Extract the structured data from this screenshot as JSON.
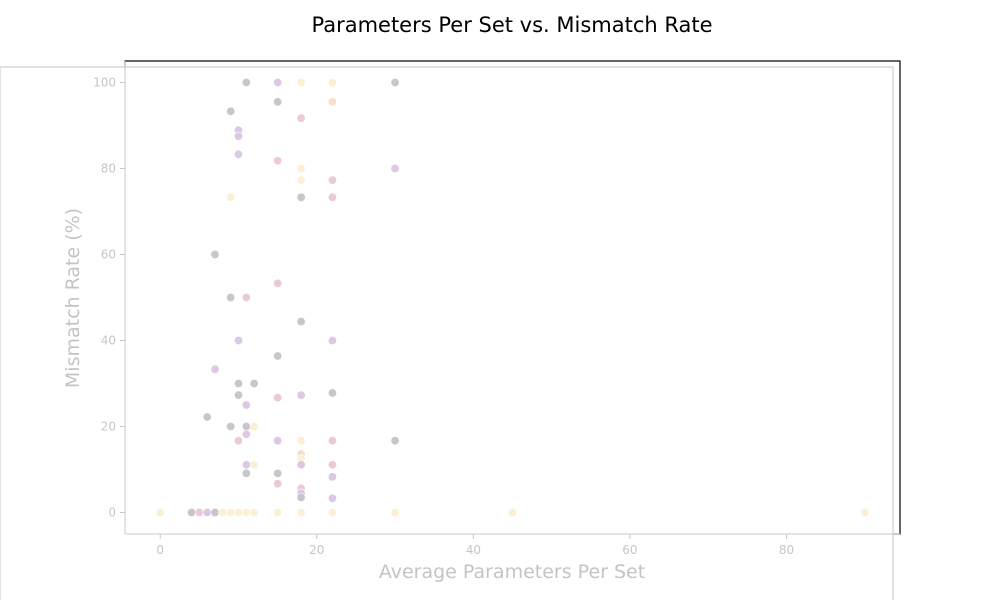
{
  "chart_data": {
    "type": "scatter",
    "title": "Parameters Per Set vs. Mismatch Rate",
    "xlabel": "Average Parameters Per Set",
    "ylabel": "Mismatch Rate (%)",
    "xlim": [
      -4.5,
      94.5
    ],
    "ylim": [
      -5,
      105
    ],
    "xticks": [
      "0",
      "20",
      "40",
      "60",
      "80"
    ],
    "yticks": [
      "0",
      "20",
      "40",
      "60",
      "80",
      "100"
    ],
    "grid": false,
    "legend": "none",
    "colors": {
      "gray": "#c9c5cc",
      "purple": "#dcc7e4",
      "pink": "#ecc9d6",
      "peach": "#f7dfcd",
      "yellow": "#fbf0d4",
      "axis": "#c8c8c8",
      "overlay": "#ffffff"
    },
    "points": [
      {
        "x": 11,
        "y": 100,
        "c": "gray"
      },
      {
        "x": 15,
        "y": 100,
        "c": "purple"
      },
      {
        "x": 18,
        "y": 100,
        "c": "yellow"
      },
      {
        "x": 22,
        "y": 100,
        "c": "yellow"
      },
      {
        "x": 30,
        "y": 100,
        "c": "gray"
      },
      {
        "x": 15,
        "y": 95.5,
        "c": "gray"
      },
      {
        "x": 22,
        "y": 95.5,
        "c": "peach"
      },
      {
        "x": 9,
        "y": 93.3,
        "c": "gray"
      },
      {
        "x": 18,
        "y": 91.7,
        "c": "pink"
      },
      {
        "x": 10,
        "y": 88.9,
        "c": "purple"
      },
      {
        "x": 10,
        "y": 87.5,
        "c": "purple"
      },
      {
        "x": 10,
        "y": 83.3,
        "c": "purple"
      },
      {
        "x": 15,
        "y": 81.8,
        "c": "pink"
      },
      {
        "x": 18,
        "y": 80,
        "c": "yellow"
      },
      {
        "x": 30,
        "y": 80,
        "c": "purple"
      },
      {
        "x": 18,
        "y": 77.3,
        "c": "yellow"
      },
      {
        "x": 22,
        "y": 77.3,
        "c": "pink"
      },
      {
        "x": 9,
        "y": 73.3,
        "c": "yellow"
      },
      {
        "x": 18,
        "y": 73.3,
        "c": "gray"
      },
      {
        "x": 22,
        "y": 73.3,
        "c": "pink"
      },
      {
        "x": 7,
        "y": 60,
        "c": "gray"
      },
      {
        "x": 15,
        "y": 53.3,
        "c": "pink"
      },
      {
        "x": 9,
        "y": 50,
        "c": "gray"
      },
      {
        "x": 11,
        "y": 50,
        "c": "pink"
      },
      {
        "x": 18,
        "y": 44.4,
        "c": "gray"
      },
      {
        "x": 10,
        "y": 40,
        "c": "purple"
      },
      {
        "x": 22,
        "y": 40,
        "c": "purple"
      },
      {
        "x": 15,
        "y": 36.4,
        "c": "gray"
      },
      {
        "x": 7,
        "y": 33.3,
        "c": "purple"
      },
      {
        "x": 10,
        "y": 30,
        "c": "gray"
      },
      {
        "x": 12,
        "y": 30,
        "c": "gray"
      },
      {
        "x": 10,
        "y": 27.3,
        "c": "gray"
      },
      {
        "x": 15,
        "y": 26.7,
        "c": "pink"
      },
      {
        "x": 18,
        "y": 27.3,
        "c": "purple"
      },
      {
        "x": 22,
        "y": 27.8,
        "c": "gray"
      },
      {
        "x": 11,
        "y": 25,
        "c": "purple"
      },
      {
        "x": 6,
        "y": 22.2,
        "c": "gray"
      },
      {
        "x": 9,
        "y": 20,
        "c": "gray"
      },
      {
        "x": 11,
        "y": 20,
        "c": "gray"
      },
      {
        "x": 12,
        "y": 20,
        "c": "yellow"
      },
      {
        "x": 11,
        "y": 18.2,
        "c": "purple"
      },
      {
        "x": 10,
        "y": 16.7,
        "c": "pink"
      },
      {
        "x": 15,
        "y": 16.7,
        "c": "purple"
      },
      {
        "x": 18,
        "y": 16.7,
        "c": "yellow"
      },
      {
        "x": 22,
        "y": 16.7,
        "c": "pink"
      },
      {
        "x": 30,
        "y": 16.7,
        "c": "gray"
      },
      {
        "x": 18,
        "y": 13.6,
        "c": "peach"
      },
      {
        "x": 18,
        "y": 12.5,
        "c": "yellow"
      },
      {
        "x": 11,
        "y": 11.1,
        "c": "purple"
      },
      {
        "x": 12,
        "y": 11.1,
        "c": "yellow"
      },
      {
        "x": 18,
        "y": 11.1,
        "c": "purple"
      },
      {
        "x": 22,
        "y": 11.1,
        "c": "pink"
      },
      {
        "x": 11,
        "y": 9.1,
        "c": "gray"
      },
      {
        "x": 15,
        "y": 9.1,
        "c": "gray"
      },
      {
        "x": 22,
        "y": 8.3,
        "c": "purple"
      },
      {
        "x": 15,
        "y": 6.7,
        "c": "pink"
      },
      {
        "x": 18,
        "y": 5.6,
        "c": "pink"
      },
      {
        "x": 18,
        "y": 4.5,
        "c": "purple"
      },
      {
        "x": 18,
        "y": 3.5,
        "c": "gray"
      },
      {
        "x": 22,
        "y": 3.3,
        "c": "purple"
      },
      {
        "x": 0,
        "y": 0,
        "c": "yellow"
      },
      {
        "x": 4,
        "y": 0,
        "c": "gray"
      },
      {
        "x": 5,
        "y": 0,
        "c": "pink"
      },
      {
        "x": 6,
        "y": 0,
        "c": "purple"
      },
      {
        "x": 7,
        "y": 0,
        "c": "gray"
      },
      {
        "x": 8,
        "y": 0,
        "c": "yellow"
      },
      {
        "x": 9,
        "y": 0,
        "c": "yellow"
      },
      {
        "x": 10,
        "y": 0,
        "c": "yellow"
      },
      {
        "x": 11,
        "y": 0,
        "c": "yellow"
      },
      {
        "x": 12,
        "y": 0,
        "c": "yellow"
      },
      {
        "x": 15,
        "y": 0,
        "c": "yellow"
      },
      {
        "x": 18,
        "y": 0,
        "c": "yellow"
      },
      {
        "x": 22,
        "y": 0,
        "c": "yellow"
      },
      {
        "x": 30,
        "y": 0,
        "c": "yellow"
      },
      {
        "x": 45,
        "y": 0,
        "c": "yellow"
      },
      {
        "x": 90,
        "y": 0,
        "c": "yellow"
      }
    ]
  }
}
